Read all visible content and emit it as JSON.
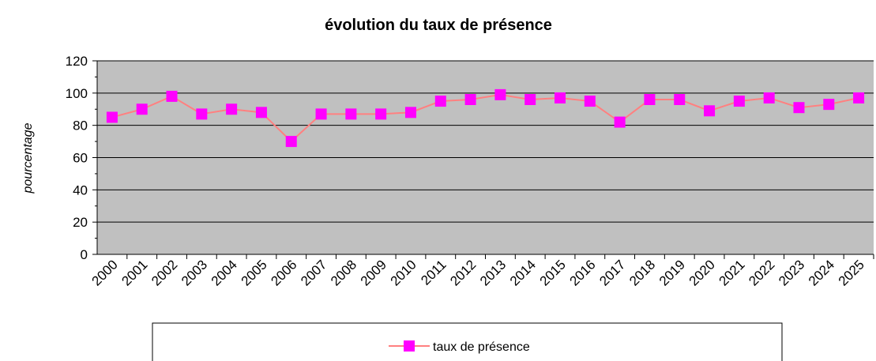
{
  "chart_data": {
    "type": "line",
    "title": "évolution du taux de présence",
    "y_label": "pourcentage",
    "categories": [
      "2000",
      "2001",
      "2002",
      "2003",
      "2004",
      "2005",
      "2006",
      "2007",
      "2008",
      "2009",
      "2010",
      "2011",
      "2012",
      "2013",
      "2014",
      "2015",
      "2016",
      "2017",
      "2018",
      "2019",
      "2020",
      "2021",
      "2022",
      "2023",
      "2024",
      "2025"
    ],
    "series": [
      {
        "name": "taux de présence",
        "color": "#ff8080",
        "marker_color": "#ff00ff",
        "values": [
          85,
          90,
          98,
          87,
          90,
          88,
          70,
          87,
          87,
          87,
          88,
          95,
          96,
          99,
          96,
          97,
          95,
          82,
          96,
          96,
          89,
          95,
          97,
          91,
          93,
          97
        ]
      }
    ],
    "ylim": [
      0,
      120
    ],
    "yticks": [
      0,
      20,
      40,
      60,
      80,
      100,
      120
    ],
    "grid": true,
    "legend": "bottom"
  }
}
